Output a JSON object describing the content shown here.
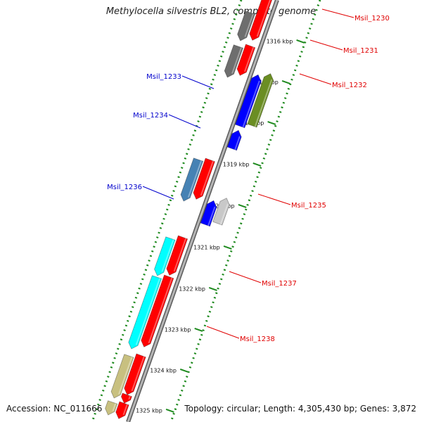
{
  "title": "Methylocella silvestris BL2, complete genome",
  "accession": "Accession: NC_011666",
  "topology": "Topology: circular; Length: 4,305,430 bp; Genes: 3,872",
  "colors": {
    "backbone": "#8c8c8c",
    "ticks": "#1e8a1e",
    "forward_label": "#e00000",
    "reverse_label": "#0000cc",
    "red_gene": "#ff0000",
    "blue_gene": "#0000ff",
    "gray_gene": "#6e6e6e",
    "light_gray_gene": "#c8c8c8",
    "olive_gene": "#6b8e23",
    "steel_gene": "#4682b4",
    "cyan_gene": "#00ffff",
    "khaki_gene": "#c8c080"
  },
  "ticks": [
    "1316 kbp",
    "1317 kbp",
    "1318 kbp",
    "1319 kbp",
    "1320 kbp",
    "1321 kbp",
    "1322 kbp",
    "1323 kbp",
    "1324 kbp",
    "1325 kbp"
  ],
  "genes": [
    {
      "label": "Msil_1230",
      "color": "red_gene",
      "strand": "+"
    },
    {
      "label": "Msil_1231",
      "color": "red_gene",
      "strand": "+"
    },
    {
      "label": "Msil_1232",
      "color": "red_gene",
      "strand": "+"
    },
    {
      "label": "Msil_1233",
      "color": "blue_gene",
      "strand": "-"
    },
    {
      "label": "Msil_1234",
      "color": "blue_gene",
      "strand": "-"
    },
    {
      "label": "Msil_1235",
      "color": "steel_gene",
      "strand": "+"
    },
    {
      "label": "Msil_1236",
      "color": "blue_gene",
      "strand": "-"
    },
    {
      "label": "Msil_1237",
      "color": "cyan_gene",
      "strand": "+"
    },
    {
      "label": "Msil_1238",
      "color": "cyan_gene",
      "strand": "+"
    }
  ]
}
